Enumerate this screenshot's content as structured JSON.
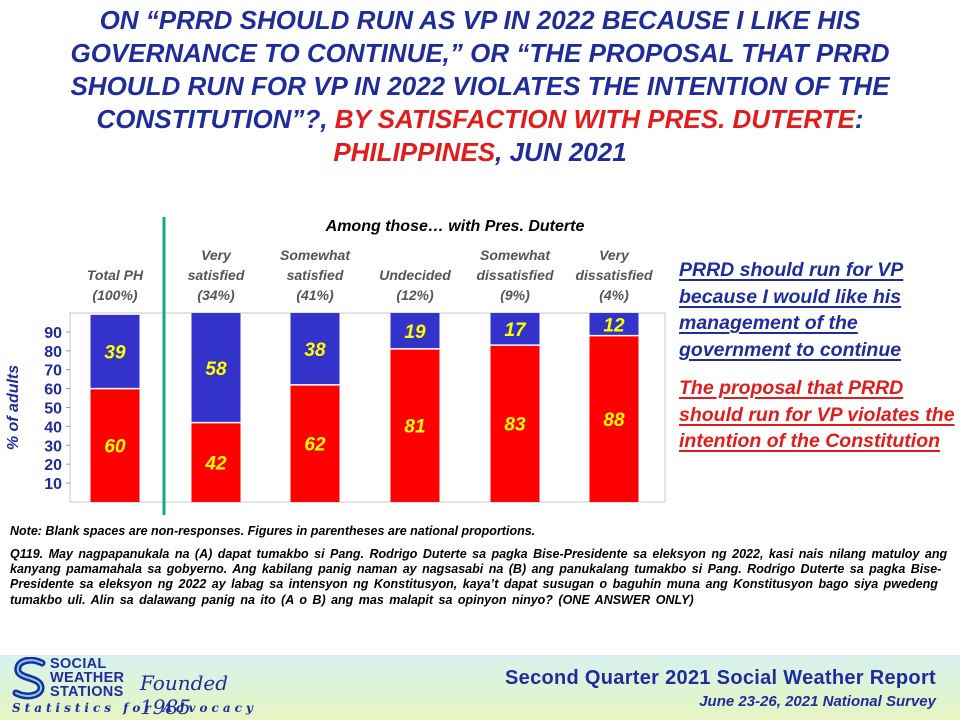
{
  "title": {
    "line1": "ON “PRRD SHOULD RUN AS VP IN 2022 BECAUSE I LIKE HIS",
    "line2": "GOVERNANCE TO CONTINUE,” OR “THE PROPOSAL THAT PRRD",
    "line3": "SHOULD RUN FOR VP IN 2022 VIOLATES THE INTENTION OF THE",
    "line4_blue": "CONSTITUTION”?,",
    "line4_red": "BY SATISFACTION WITH PRES. DUTERTE",
    "line4_colon": ":",
    "line5_red": "PHILIPPINES",
    "line5_blue": ", JUN 2021"
  },
  "chart_data": {
    "type": "bar",
    "stacked": true,
    "group_header": "Among those… with Pres. Duterte",
    "ylabel": "% of adults",
    "ylim": [
      0,
      100
    ],
    "yticks": [
      10,
      20,
      30,
      40,
      50,
      60,
      70,
      80,
      90
    ],
    "categories": [
      {
        "lines": [
          "Total PH",
          "(100%)"
        ]
      },
      {
        "lines": [
          "Very",
          "satisfied",
          "(34%)"
        ]
      },
      {
        "lines": [
          "Somewhat",
          "satisfied",
          "(41%)"
        ]
      },
      {
        "lines": [
          "Undecided",
          "(12%)"
        ]
      },
      {
        "lines": [
          "Somewhat",
          "dissatisfied",
          "(9%)"
        ]
      },
      {
        "lines": [
          "Very",
          "dissatisfied",
          "(4%)"
        ]
      }
    ],
    "series": [
      {
        "name": "The proposal that PRRD should run for VP violates the intention of the Constitution",
        "color": "#ff0000",
        "values": [
          60,
          42,
          62,
          81,
          83,
          88
        ]
      },
      {
        "name": "PRRD should run for VP because I would like his management of the government to continue",
        "color": "#3333cc",
        "values": [
          39,
          58,
          38,
          19,
          17,
          12
        ]
      }
    ],
    "label_color": "#ffff00",
    "divider_color": "#1aa884"
  },
  "legend": {
    "blue_text": "PRRD should run for VP because I would like his management of the government to continue",
    "red_text": "The proposal that PRRD should run for VP violates the intention of the Constitution"
  },
  "note": "Note: Blank spaces are non-responses. Figures in parentheses are national proportions.",
  "question": "Q119. May nagpapanukala na (A) dapat tumakbo si Pang. Rodrigo Duterte sa pagka Bise-Presidente sa eleksyon ng 2022, kasi nais nilang matuloy ang kanyang pamamahala sa gobyerno. Ang kabilang panig naman ay nagsasabi na (B) ang panukalang tumakbo si Pang. Rodrigo Duterte sa pagka Bise-Presidente sa eleksyon ng 2022 ay labag sa intensyon ng Konstitusyon, kaya’t dapat susugan o baguhin muna ang Konstitusyon bago siya pwedeng tumakbo uli. Alin sa dalawang panig na ito (A o B) ang mas malapit sa opinyon ninyo? (ONE ANSWER ONLY)",
  "footer": {
    "logo_line1": "SOCIAL",
    "logo_line2": "WEATHER",
    "logo_line3": "STATIONS",
    "founded": "Founded 1985",
    "tagline": "Statistics for Advocacy",
    "report_title": "Second Quarter 2021 Social Weather Report",
    "survey_dates": "June 23-26, 2021 National Survey"
  }
}
